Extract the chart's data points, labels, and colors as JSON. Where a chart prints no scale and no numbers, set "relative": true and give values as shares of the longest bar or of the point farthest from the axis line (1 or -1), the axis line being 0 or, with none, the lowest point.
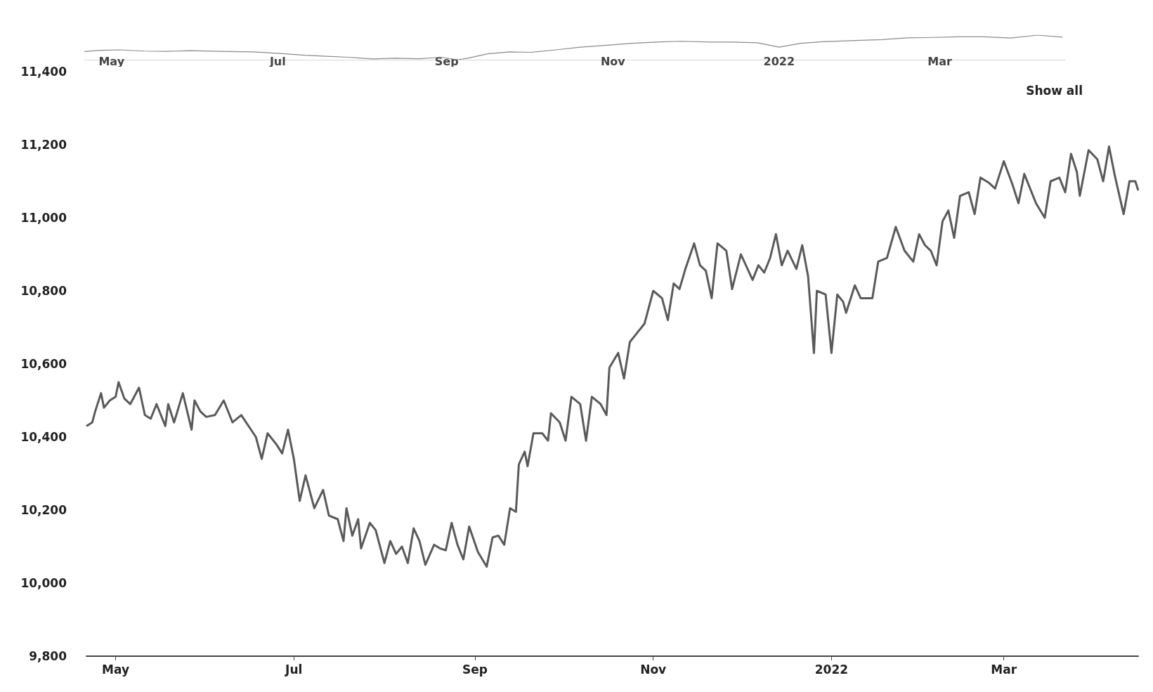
{
  "chart_data": [
    {
      "type": "line",
      "annotations": [
        "Show all"
      ],
      "x": [
        "2021-04-21",
        "2021-04-23",
        "2021-04-24",
        "2021-04-26",
        "2021-04-27",
        "2021-04-29",
        "2021-05-01",
        "2021-05-02",
        "2021-05-04",
        "2021-05-06",
        "2021-05-09",
        "2021-05-11",
        "2021-05-13",
        "2021-05-15",
        "2021-05-18",
        "2021-05-19",
        "2021-05-21",
        "2021-05-24",
        "2021-05-27",
        "2021-05-28",
        "2021-05-30",
        "2021-06-01",
        "2021-06-04",
        "2021-06-07",
        "2021-06-10",
        "2021-06-13",
        "2021-06-18",
        "2021-06-20",
        "2021-06-22",
        "2021-06-25",
        "2021-06-27",
        "2021-06-29",
        "2021-07-01",
        "2021-07-03",
        "2021-07-05",
        "2021-07-08",
        "2021-07-11",
        "2021-07-13",
        "2021-07-16",
        "2021-07-18",
        "2021-07-19",
        "2021-07-21",
        "2021-07-23",
        "2021-07-24",
        "2021-07-27",
        "2021-07-29",
        "2021-08-01",
        "2021-08-03",
        "2021-08-05",
        "2021-08-07",
        "2021-08-09",
        "2021-08-11",
        "2021-08-13",
        "2021-08-15",
        "2021-08-18",
        "2021-08-20",
        "2021-08-22",
        "2021-08-24",
        "2021-08-26",
        "2021-08-28",
        "2021-08-30",
        "2021-09-02",
        "2021-09-05",
        "2021-09-07",
        "2021-09-09",
        "2021-09-11",
        "2021-09-13",
        "2021-09-15",
        "2021-09-16",
        "2021-09-18",
        "2021-09-19",
        "2021-09-21",
        "2021-09-24",
        "2021-09-26",
        "2021-09-27",
        "2021-09-30",
        "2021-10-02",
        "2021-10-04",
        "2021-10-07",
        "2021-10-09",
        "2021-10-11",
        "2021-10-14",
        "2021-10-16",
        "2021-10-17",
        "2021-10-20",
        "2021-10-22",
        "2021-10-24",
        "2021-10-26",
        "2021-10-29",
        "2021-11-01",
        "2021-11-04",
        "2021-11-06",
        "2021-11-08",
        "2021-11-10",
        "2021-11-12",
        "2021-11-15",
        "2021-11-17",
        "2021-11-19",
        "2021-11-21",
        "2021-11-23",
        "2021-11-26",
        "2021-11-28",
        "2021-12-01",
        "2021-12-05",
        "2021-12-07",
        "2021-12-09",
        "2021-12-11",
        "2021-12-13",
        "2021-12-15",
        "2021-12-17",
        "2021-12-20",
        "2021-12-22",
        "2021-12-24",
        "2021-12-26",
        "2021-12-27",
        "2021-12-30",
        "2022-01-01",
        "2022-01-03",
        "2022-01-05",
        "2022-01-06",
        "2022-01-09",
        "2022-01-11",
        "2022-01-15",
        "2022-01-17",
        "2022-01-20",
        "2022-01-23",
        "2022-01-26",
        "2022-01-29",
        "2022-01-31",
        "2022-02-02",
        "2022-02-04",
        "2022-02-06",
        "2022-02-08",
        "2022-02-10",
        "2022-02-12",
        "2022-02-14",
        "2022-02-17",
        "2022-02-19",
        "2022-02-21",
        "2022-02-24",
        "2022-02-26",
        "2022-03-01",
        "2022-03-04",
        "2022-03-06",
        "2022-03-08",
        "2022-03-12",
        "2022-03-15",
        "2022-03-17",
        "2022-03-20",
        "2022-03-22",
        "2022-03-24",
        "2022-03-26",
        "2022-03-27",
        "2022-03-30",
        "2022-04-02",
        "2022-04-04",
        "2022-04-06",
        "2022-04-08",
        "2022-04-11",
        "2022-04-13",
        "2022-04-15",
        "2022-04-16"
      ],
      "series": [
        {
          "color": "#5a5a5a",
          "values": [
            10430,
            10440,
            10470,
            10520,
            10480,
            10500,
            10510,
            10550,
            10505,
            10490,
            10535,
            10460,
            10450,
            10490,
            10430,
            10490,
            10440,
            10520,
            10420,
            10500,
            10470,
            10455,
            10460,
            10500,
            10440,
            10460,
            10400,
            10340,
            10410,
            10380,
            10355,
            10420,
            10340,
            10225,
            10295,
            10205,
            10255,
            10185,
            10175,
            10115,
            10205,
            10130,
            10175,
            10095,
            10165,
            10145,
            10055,
            10115,
            10080,
            10100,
            10055,
            10150,
            10115,
            10050,
            10105,
            10095,
            10090,
            10165,
            10105,
            10065,
            10155,
            10085,
            10045,
            10125,
            10130,
            10105,
            10205,
            10195,
            10325,
            10360,
            10320,
            10410,
            10410,
            10390,
            10465,
            10440,
            10390,
            10510,
            10490,
            10390,
            10510,
            10490,
            10460,
            10590,
            10630,
            10560,
            10660,
            10680,
            10710,
            10800,
            10780,
            10720,
            10820,
            10805,
            10860,
            10930,
            10870,
            10855,
            10780,
            10930,
            10910,
            10805,
            10900,
            10830,
            10870,
            10850,
            10890,
            10955,
            10870,
            10910,
            10860,
            10925,
            10840,
            10630,
            10800,
            10790,
            10630,
            10790,
            10770,
            10740,
            10815,
            10780,
            10780,
            10880,
            10890,
            10975,
            10910,
            10880,
            10955,
            10925,
            10910,
            10870,
            10990,
            11020,
            10945,
            11060,
            11070,
            11010,
            11110,
            11095,
            11080,
            11155,
            11090,
            11040,
            11120,
            11040,
            11000,
            11100,
            11110,
            11070,
            11175,
            11125,
            11060,
            11185,
            11160,
            11100,
            11195,
            11115,
            11010,
            11100,
            11100,
            11075
          ]
        }
      ],
      "xlim": [
        "2021-04-21",
        "2022-04-16"
      ],
      "xticks": [
        {
          "value": "2021-05-01",
          "label": "May"
        },
        {
          "value": "2021-07-01",
          "label": "Jul"
        },
        {
          "value": "2021-09-01",
          "label": "Sep"
        },
        {
          "value": "2021-11-01",
          "label": "Nov"
        },
        {
          "value": "2022-01-01",
          "label": "2022"
        },
        {
          "value": "2022-03-01",
          "label": "Mar"
        }
      ],
      "ylim": [
        9800,
        11400
      ],
      "yticks": [
        {
          "value": 9800,
          "label": "9,800"
        },
        {
          "value": 10000,
          "label": "10,000"
        },
        {
          "value": 10200,
          "label": "10,200"
        },
        {
          "value": 10400,
          "label": "10,400"
        },
        {
          "value": 10600,
          "label": "10,600"
        },
        {
          "value": 10800,
          "label": "10,800"
        },
        {
          "value": 11000,
          "label": "11,000"
        },
        {
          "value": 11200,
          "label": "11,200"
        },
        {
          "value": 11400,
          "label": "11,400"
        }
      ],
      "grid": false,
      "marker": "none",
      "line_style": "solid"
    },
    {
      "type": "line",
      "relative": true,
      "x": [
        "2021-04-21",
        "2021-04-27",
        "2021-05-04",
        "2021-05-13",
        "2021-05-21",
        "2021-05-30",
        "2021-06-10",
        "2021-06-22",
        "2021-07-01",
        "2021-07-11",
        "2021-07-19",
        "2021-07-27",
        "2021-08-05",
        "2021-08-13",
        "2021-08-22",
        "2021-08-30",
        "2021-09-05",
        "2021-09-09",
        "2021-09-16",
        "2021-09-24",
        "2021-10-02",
        "2021-10-11",
        "2021-10-20",
        "2021-10-29",
        "2021-11-08",
        "2021-11-17",
        "2021-11-26",
        "2021-12-07",
        "2021-12-15",
        "2021-12-24",
        "2022-01-01",
        "2022-01-09",
        "2022-01-17",
        "2022-01-31",
        "2022-02-08",
        "2022-02-17",
        "2022-02-24",
        "2022-03-08",
        "2022-03-17",
        "2022-03-27",
        "2022-04-06",
        "2022-04-15"
      ],
      "series": [
        {
          "color": "#8a8a8a",
          "values": [
            0.33,
            0.38,
            0.4,
            0.35,
            0.34,
            0.37,
            0.34,
            0.32,
            0.26,
            0.18,
            0.14,
            0.1,
            0.03,
            0.06,
            0.04,
            0.1,
            0,
            0.07,
            0.24,
            0.32,
            0.3,
            0.4,
            0.51,
            0.58,
            0.67,
            0.72,
            0.75,
            0.72,
            0.72,
            0.69,
            0.51,
            0.67,
            0.73,
            0.79,
            0.82,
            0.89,
            0.9,
            0.93,
            0.93,
            0.88,
            1,
            0.92
          ]
        }
      ],
      "xlim": [
        "2021-04-21",
        "2022-04-16"
      ],
      "xticks": [
        {
          "value": "2021-05-01",
          "label": "May"
        },
        {
          "value": "2021-07-01",
          "label": "Jul"
        },
        {
          "value": "2021-09-01",
          "label": "Sep"
        },
        {
          "value": "2021-11-01",
          "label": "Nov"
        },
        {
          "value": "2022-01-01",
          "label": "2022"
        },
        {
          "value": "2022-03-01",
          "label": "Mar"
        }
      ],
      "line_style": "solid"
    }
  ]
}
